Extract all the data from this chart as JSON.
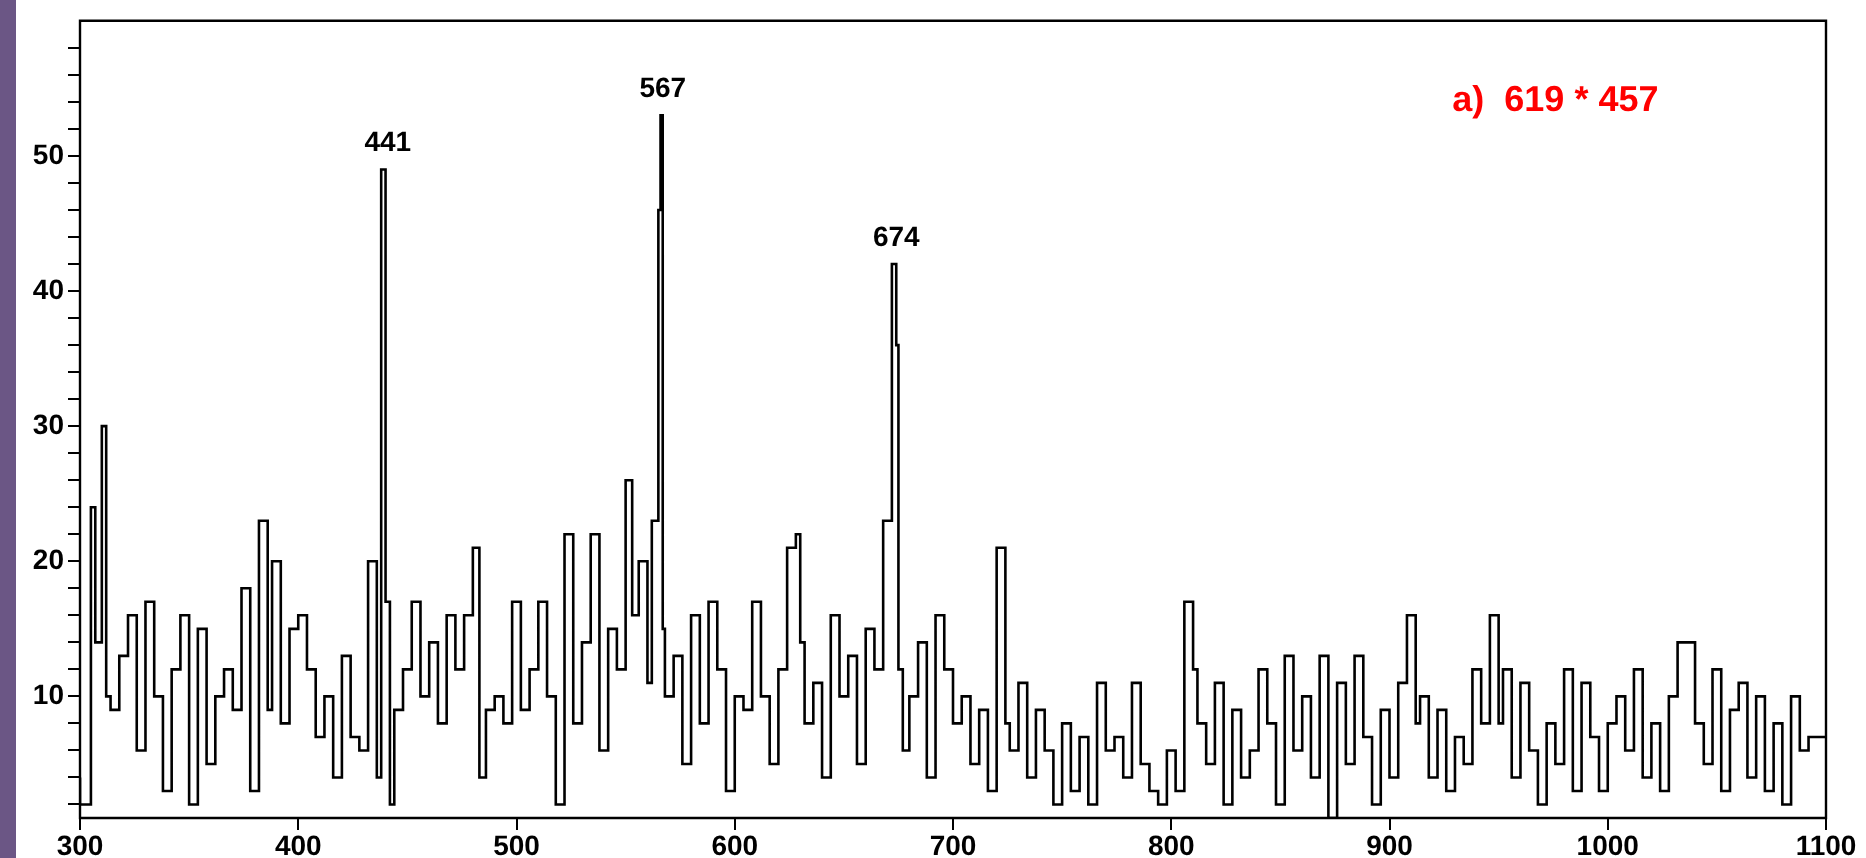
{
  "chart_data": {
    "type": "step",
    "x": [
      300,
      305,
      307,
      310,
      312,
      314,
      318,
      322,
      326,
      330,
      334,
      338,
      342,
      346,
      350,
      354,
      358,
      362,
      366,
      370,
      374,
      378,
      382,
      386,
      388,
      392,
      396,
      400,
      404,
      408,
      412,
      416,
      420,
      424,
      428,
      432,
      436,
      438,
      440,
      442,
      444,
      448,
      452,
      456,
      460,
      464,
      468,
      472,
      476,
      480,
      483,
      486,
      490,
      494,
      498,
      502,
      506,
      510,
      514,
      518,
      522,
      526,
      530,
      534,
      538,
      542,
      546,
      550,
      553,
      556,
      560,
      562,
      565,
      566,
      567,
      568,
      572,
      576,
      580,
      584,
      588,
      592,
      596,
      600,
      604,
      608,
      612,
      616,
      620,
      624,
      628,
      630,
      632,
      636,
      640,
      644,
      648,
      652,
      656,
      660,
      664,
      668,
      672,
      674,
      675,
      677,
      680,
      684,
      688,
      692,
      696,
      700,
      704,
      708,
      712,
      716,
      720,
      724,
      726,
      730,
      734,
      738,
      742,
      746,
      750,
      754,
      758,
      762,
      766,
      770,
      774,
      778,
      782,
      786,
      790,
      794,
      798,
      802,
      806,
      810,
      812,
      816,
      820,
      824,
      828,
      832,
      836,
      840,
      844,
      848,
      852,
      856,
      860,
      864,
      868,
      872,
      876,
      880,
      884,
      888,
      892,
      896,
      900,
      904,
      908,
      912,
      914,
      918,
      922,
      926,
      930,
      934,
      938,
      942,
      946,
      950,
      952,
      956,
      960,
      964,
      968,
      972,
      976,
      980,
      984,
      988,
      992,
      996,
      1000,
      1004,
      1008,
      1012,
      1016,
      1020,
      1024,
      1028,
      1032,
      1036,
      1040,
      1044,
      1048,
      1052,
      1056,
      1060,
      1064,
      1068,
      1072,
      1076,
      1080,
      1084,
      1088,
      1092,
      1096,
      1100
    ],
    "values": [
      4,
      2,
      24,
      14,
      30,
      10,
      9,
      13,
      16,
      6,
      17,
      10,
      3,
      12,
      16,
      2,
      15,
      5,
      10,
      12,
      9,
      18,
      3,
      23,
      9,
      20,
      8,
      15,
      16,
      12,
      7,
      10,
      4,
      13,
      7,
      6,
      20,
      4,
      49,
      17,
      2,
      9,
      12,
      17,
      10,
      14,
      8,
      16,
      12,
      16,
      21,
      4,
      9,
      10,
      8,
      17,
      9,
      12,
      17,
      10,
      2,
      22,
      8,
      14,
      22,
      6,
      15,
      12,
      26,
      16,
      20,
      11,
      23,
      46,
      53,
      15,
      10,
      13,
      5,
      16,
      8,
      17,
      12,
      3,
      10,
      9,
      17,
      10,
      5,
      12,
      21,
      22,
      14,
      8,
      11,
      4,
      16,
      10,
      13,
      5,
      15,
      12,
      23,
      42,
      36,
      12,
      6,
      10,
      14,
      4,
      16,
      12,
      8,
      10,
      5,
      9,
      3,
      21,
      8,
      6,
      11,
      4,
      9,
      6,
      2,
      8,
      3,
      7,
      2,
      11,
      6,
      7,
      4,
      11,
      5,
      3,
      2,
      6,
      3,
      17,
      12,
      8,
      5,
      11,
      2,
      9,
      4,
      6,
      12,
      8,
      2,
      13,
      6,
      10,
      4,
      13,
      1,
      11,
      5,
      13,
      7,
      2,
      9,
      4,
      11,
      16,
      8,
      10,
      4,
      9,
      3,
      7,
      5,
      12,
      8,
      16,
      8,
      12,
      4,
      11,
      6,
      2,
      8,
      5,
      12,
      3,
      11,
      7,
      3,
      8,
      10,
      6,
      12,
      4,
      8,
      3,
      10,
      14,
      14,
      8,
      5,
      12,
      3,
      9,
      11,
      4,
      10,
      3,
      8,
      2,
      10,
      6,
      7,
      7
    ],
    "color": "#000000",
    "xlim": [
      300,
      1100
    ],
    "xticks": [
      300,
      400,
      500,
      600,
      700,
      800,
      900,
      1000,
      1100
    ],
    "ylim": [
      1,
      60
    ],
    "yticks": [
      {
        "value": 2,
        "label": null
      },
      {
        "value": 4,
        "label": null
      },
      {
        "value": 6,
        "label": null
      },
      {
        "value": 8,
        "label": null
      },
      10,
      {
        "value": 12,
        "label": null
      },
      {
        "value": 14,
        "label": null
      },
      {
        "value": 16,
        "label": null
      },
      {
        "value": 18,
        "label": null
      },
      20,
      {
        "value": 22,
        "label": null
      },
      {
        "value": 24,
        "label": null
      },
      {
        "value": 26,
        "label": null
      },
      {
        "value": 28,
        "label": null
      },
      30,
      {
        "value": 32,
        "label": null
      },
      {
        "value": 34,
        "label": null
      },
      {
        "value": 36,
        "label": null
      },
      {
        "value": 38,
        "label": null
      },
      40,
      {
        "value": 42,
        "label": null
      },
      {
        "value": 44,
        "label": null
      },
      {
        "value": 46,
        "label": null
      },
      {
        "value": 48,
        "label": null
      },
      50,
      {
        "value": 52,
        "label": null
      },
      {
        "value": 54,
        "label": null
      },
      {
        "value": 56,
        "label": null
      },
      {
        "value": 58,
        "label": null
      }
    ],
    "grid": false,
    "legend": false,
    "marker": "none",
    "annotations": [
      {
        "text": "441",
        "x": 441,
        "y": 49
      },
      {
        "text": "567",
        "x": 567,
        "y": 53
      },
      {
        "text": "674",
        "x": 674,
        "y": 42
      },
      "a)  619 * 457"
    ]
  }
}
